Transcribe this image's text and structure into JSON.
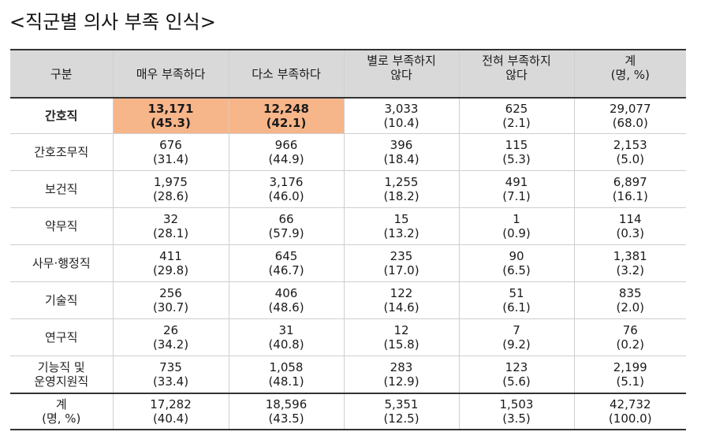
{
  "title": "<직군별 의사 부족 인식>",
  "header": {
    "category": "구분",
    "col1": "매우 부족하다",
    "col2": "다소 부족하다",
    "col3_line1": "별로 부족하지",
    "col3_line2": "않다",
    "col4_line1": "전혀 부족하지",
    "col4_line2": "않다",
    "col5_line1": "계",
    "col5_line2": "(명, %)"
  },
  "rows": [
    {
      "label": "간호직",
      "cells": [
        {
          "count": "13,171",
          "pct": "(45.3)"
        },
        {
          "count": "12,248",
          "pct": "(42.1)"
        },
        {
          "count": "3,033",
          "pct": "(10.4)"
        },
        {
          "count": "625",
          "pct": "(2.1)"
        },
        {
          "count": "29,077",
          "pct": "(68.0)"
        }
      ]
    },
    {
      "label": "간호조무직",
      "cells": [
        {
          "count": "676",
          "pct": "(31.4)"
        },
        {
          "count": "966",
          "pct": "(44.9)"
        },
        {
          "count": "396",
          "pct": "(18.4)"
        },
        {
          "count": "115",
          "pct": "(5.3)"
        },
        {
          "count": "2,153",
          "pct": "(5.0)"
        }
      ]
    },
    {
      "label": "보건직",
      "cells": [
        {
          "count": "1,975",
          "pct": "(28.6)"
        },
        {
          "count": "3,176",
          "pct": "(46.0)"
        },
        {
          "count": "1,255",
          "pct": "(18.2)"
        },
        {
          "count": "491",
          "pct": "(7.1)"
        },
        {
          "count": "6,897",
          "pct": "(16.1)"
        }
      ]
    },
    {
      "label": "약무직",
      "cells": [
        {
          "count": "32",
          "pct": "(28.1)"
        },
        {
          "count": "66",
          "pct": "(57.9)"
        },
        {
          "count": "15",
          "pct": "(13.2)"
        },
        {
          "count": "1",
          "pct": "(0.9)"
        },
        {
          "count": "114",
          "pct": "(0.3)"
        }
      ]
    },
    {
      "label": "사무·행정직",
      "cells": [
        {
          "count": "411",
          "pct": "(29.8)"
        },
        {
          "count": "645",
          "pct": "(46.7)"
        },
        {
          "count": "235",
          "pct": "(17.0)"
        },
        {
          "count": "90",
          "pct": "(6.5)"
        },
        {
          "count": "1,381",
          "pct": "(3.2)"
        }
      ]
    },
    {
      "label": "기술직",
      "cells": [
        {
          "count": "256",
          "pct": "(30.7)"
        },
        {
          "count": "406",
          "pct": "(48.6)"
        },
        {
          "count": "122",
          "pct": "(14.6)"
        },
        {
          "count": "51",
          "pct": "(6.1)"
        },
        {
          "count": "835",
          "pct": "(2.0)"
        }
      ]
    },
    {
      "label": "연구직",
      "cells": [
        {
          "count": "26",
          "pct": "(34.2)"
        },
        {
          "count": "31",
          "pct": "(40.8)"
        },
        {
          "count": "12",
          "pct": "(15.8)"
        },
        {
          "count": "7",
          "pct": "(9.2)"
        },
        {
          "count": "76",
          "pct": "(0.2)"
        }
      ]
    },
    {
      "label_line1": "기능직 및",
      "label_line2": "운영지원직",
      "cells": [
        {
          "count": "735",
          "pct": "(33.4)"
        },
        {
          "count": "1,058",
          "pct": "(48.1)"
        },
        {
          "count": "283",
          "pct": "(12.9)"
        },
        {
          "count": "123",
          "pct": "(5.6)"
        },
        {
          "count": "2,199",
          "pct": "(5.1)"
        }
      ]
    }
  ],
  "total": {
    "label_line1": "계",
    "label_line2": "(명, %)",
    "cells": [
      {
        "count": "17,282",
        "pct": "(40.4)"
      },
      {
        "count": "18,596",
        "pct": "(43.5)"
      },
      {
        "count": "5,351",
        "pct": "(12.5)"
      },
      {
        "count": "1,503",
        "pct": "(3.5)"
      },
      {
        "count": "42,732",
        "pct": "(100.0)"
      }
    ]
  },
  "colors": {
    "header_bg": "#d9d9d9",
    "highlight_bg": "#f7b58a"
  }
}
